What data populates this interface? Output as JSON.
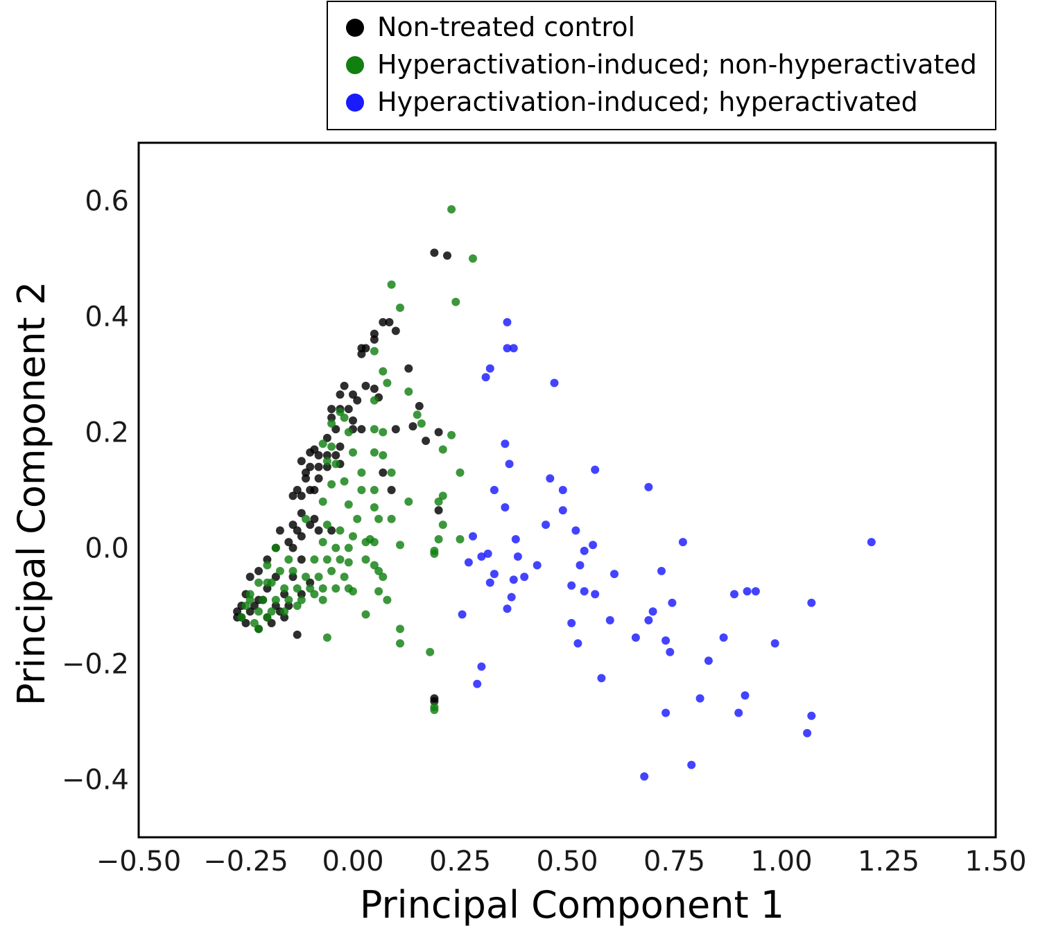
{
  "chart_data": {
    "type": "scatter",
    "xlabel": "Principal Component 1",
    "ylabel": "Principal Component 2",
    "xlim": [
      -0.5,
      1.5
    ],
    "ylim": [
      -0.5,
      0.7
    ],
    "xticks": [
      {
        "value": -0.5,
        "label": "−0.50"
      },
      {
        "value": -0.25,
        "label": "−0.25"
      },
      {
        "value": 0.0,
        "label": "0.00"
      },
      {
        "value": 0.25,
        "label": "0.25"
      },
      {
        "value": 0.5,
        "label": "0.50"
      },
      {
        "value": 0.75,
        "label": "0.75"
      },
      {
        "value": 1.0,
        "label": "1.00"
      },
      {
        "value": 1.25,
        "label": "1.25"
      },
      {
        "value": 1.5,
        "label": "1.50"
      }
    ],
    "yticks": [
      {
        "value": -0.4,
        "label": "−0.4"
      },
      {
        "value": -0.2,
        "label": "−0.2"
      },
      {
        "value": 0.0,
        "label": "0.0"
      },
      {
        "value": 0.2,
        "label": "0.2"
      },
      {
        "value": 0.4,
        "label": "0.4"
      },
      {
        "value": 0.6,
        "label": "0.6"
      }
    ],
    "grid": false,
    "legend_position": "top-right, above plot",
    "series": [
      {
        "name": "Non-treated control",
        "color": "#000000",
        "points": [
          [
            0.19,
            0.51
          ],
          [
            0.22,
            0.505
          ],
          [
            0.07,
            0.39
          ],
          [
            0.085,
            0.39
          ],
          [
            0.1,
            0.375
          ],
          [
            0.05,
            0.37
          ],
          [
            0.05,
            0.36
          ],
          [
            0.03,
            0.345
          ],
          [
            0.02,
            0.345
          ],
          [
            0.02,
            0.335
          ],
          [
            0.13,
            0.31
          ],
          [
            0.03,
            0.28
          ],
          [
            0.05,
            0.275
          ],
          [
            -0.02,
            0.28
          ],
          [
            -0.03,
            0.265
          ],
          [
            0.0,
            0.265
          ],
          [
            0.01,
            0.255
          ],
          [
            0.06,
            0.26
          ],
          [
            -0.03,
            0.24
          ],
          [
            -0.01,
            0.24
          ],
          [
            -0.05,
            0.24
          ],
          [
            -0.05,
            0.225
          ],
          [
            0.0,
            0.22
          ],
          [
            0.155,
            0.245
          ],
          [
            0.14,
            0.21
          ],
          [
            -0.04,
            0.205
          ],
          [
            0.0,
            0.205
          ],
          [
            0.02,
            0.205
          ],
          [
            0.1,
            0.205
          ],
          [
            0.2,
            0.2
          ],
          [
            0.17,
            0.185
          ],
          [
            -0.06,
            0.19
          ],
          [
            -0.03,
            0.175
          ],
          [
            -0.09,
            0.17
          ],
          [
            -0.1,
            0.165
          ],
          [
            -0.08,
            0.16
          ],
          [
            -0.06,
            0.16
          ],
          [
            -0.04,
            0.16
          ],
          [
            -0.12,
            0.15
          ],
          [
            -0.1,
            0.14
          ],
          [
            -0.08,
            0.14
          ],
          [
            -0.11,
            0.13
          ],
          [
            -0.06,
            0.14
          ],
          [
            -0.03,
            0.145
          ],
          [
            -0.11,
            0.12
          ],
          [
            -0.08,
            0.12
          ],
          [
            -0.13,
            0.1
          ],
          [
            -0.1,
            0.1
          ],
          [
            -0.14,
            0.09
          ],
          [
            -0.12,
            0.09
          ],
          [
            -0.09,
            0.1
          ],
          [
            0.07,
            0.13
          ],
          [
            0.09,
            0.1
          ],
          [
            0.2,
            0.065
          ],
          [
            -0.12,
            0.06
          ],
          [
            -0.09,
            0.05
          ],
          [
            -0.14,
            0.04
          ],
          [
            -0.1,
            0.04
          ],
          [
            -0.08,
            0.03
          ],
          [
            -0.13,
            0.03
          ],
          [
            -0.17,
            0.03
          ],
          [
            -0.15,
            0.01
          ],
          [
            -0.12,
            0.02
          ],
          [
            -0.05,
            0.03
          ],
          [
            -0.18,
            0.0
          ],
          [
            -0.14,
            0.0
          ],
          [
            -0.2,
            -0.02
          ],
          [
            -0.12,
            -0.02
          ],
          [
            -0.22,
            -0.04
          ],
          [
            -0.18,
            -0.05
          ],
          [
            -0.14,
            -0.05
          ],
          [
            -0.1,
            -0.06
          ],
          [
            -0.24,
            -0.05
          ],
          [
            -0.2,
            -0.07
          ],
          [
            -0.16,
            -0.08
          ],
          [
            -0.12,
            -0.08
          ],
          [
            -0.25,
            -0.08
          ],
          [
            -0.22,
            -0.09
          ],
          [
            -0.18,
            -0.1
          ],
          [
            -0.26,
            -0.1
          ],
          [
            -0.24,
            -0.11
          ],
          [
            -0.2,
            -0.12
          ],
          [
            -0.27,
            -0.12
          ],
          [
            -0.25,
            -0.13
          ],
          [
            -0.22,
            -0.14
          ],
          [
            -0.16,
            -0.12
          ],
          [
            -0.19,
            -0.13
          ],
          [
            -0.13,
            -0.15
          ],
          [
            0.19,
            -0.26
          ],
          [
            0.19,
            -0.265
          ],
          [
            -0.27,
            -0.11
          ],
          [
            -0.26,
            -0.12
          ],
          [
            -0.23,
            -0.1
          ],
          [
            -0.21,
            -0.09
          ],
          [
            -0.15,
            -0.1
          ],
          [
            -0.17,
            -0.11
          ]
        ]
      },
      {
        "name": "Hyperactivation-induced; non-hyperactivated",
        "color": "#118011",
        "points": [
          [
            0.23,
            0.585
          ],
          [
            0.28,
            0.5
          ],
          [
            0.09,
            0.455
          ],
          [
            0.24,
            0.425
          ],
          [
            0.11,
            0.415
          ],
          [
            0.05,
            0.34
          ],
          [
            0.07,
            0.305
          ],
          [
            0.08,
            0.285
          ],
          [
            0.13,
            0.27
          ],
          [
            0.05,
            0.255
          ],
          [
            -0.03,
            0.235
          ],
          [
            -0.02,
            0.225
          ],
          [
            0.15,
            0.23
          ],
          [
            0.16,
            0.215
          ],
          [
            -0.05,
            0.215
          ],
          [
            -0.01,
            0.2
          ],
          [
            0.05,
            0.205
          ],
          [
            0.07,
            0.2
          ],
          [
            0.23,
            0.195
          ],
          [
            -0.07,
            0.18
          ],
          [
            -0.05,
            0.175
          ],
          [
            0.0,
            0.165
          ],
          [
            0.05,
            0.165
          ],
          [
            0.07,
            0.16
          ],
          [
            0.21,
            0.17
          ],
          [
            -0.06,
            0.15
          ],
          [
            -0.04,
            0.145
          ],
          [
            0.02,
            0.13
          ],
          [
            0.09,
            0.13
          ],
          [
            0.25,
            0.13
          ],
          [
            -0.05,
            0.11
          ],
          [
            -0.02,
            0.115
          ],
          [
            0.02,
            0.1
          ],
          [
            0.05,
            0.1
          ],
          [
            0.13,
            0.08
          ],
          [
            0.2,
            0.08
          ],
          [
            0.21,
            0.09
          ],
          [
            -0.07,
            0.08
          ],
          [
            -0.01,
            0.075
          ],
          [
            0.05,
            0.07
          ],
          [
            0.01,
            0.05
          ],
          [
            0.06,
            0.05
          ],
          [
            0.09,
            0.05
          ],
          [
            0.21,
            0.04
          ],
          [
            -0.11,
            0.05
          ],
          [
            -0.06,
            0.04
          ],
          [
            -0.03,
            0.03
          ],
          [
            0.0,
            0.02
          ],
          [
            0.04,
            0.015
          ],
          [
            0.05,
            0.01
          ],
          [
            0.2,
            0.015
          ],
          [
            0.25,
            0.015
          ],
          [
            -0.07,
            0.01
          ],
          [
            -0.04,
            0.0
          ],
          [
            -0.01,
            0.0
          ],
          [
            0.03,
            0.01
          ],
          [
            0.11,
            0.005
          ],
          [
            0.19,
            -0.005
          ],
          [
            0.19,
            -0.01
          ],
          [
            -0.18,
            0.0
          ],
          [
            -0.15,
            -0.02
          ],
          [
            -0.09,
            -0.02
          ],
          [
            -0.06,
            -0.02
          ],
          [
            -0.03,
            -0.02
          ],
          [
            -0.01,
            -0.025
          ],
          [
            0.03,
            -0.02
          ],
          [
            0.05,
            -0.03
          ],
          [
            0.06,
            -0.04
          ],
          [
            -0.2,
            -0.03
          ],
          [
            -0.17,
            -0.04
          ],
          [
            -0.14,
            -0.04
          ],
          [
            -0.11,
            -0.05
          ],
          [
            -0.08,
            -0.05
          ],
          [
            -0.05,
            -0.04
          ],
          [
            -0.02,
            -0.05
          ],
          [
            0.07,
            -0.05
          ],
          [
            -0.22,
            -0.06
          ],
          [
            -0.19,
            -0.06
          ],
          [
            -0.16,
            -0.07
          ],
          [
            -0.13,
            -0.07
          ],
          [
            -0.1,
            -0.07
          ],
          [
            -0.07,
            -0.07
          ],
          [
            -0.04,
            -0.07
          ],
          [
            -0.01,
            -0.07
          ],
          [
            0.0,
            -0.075
          ],
          [
            0.06,
            -0.075
          ],
          [
            -0.24,
            -0.08
          ],
          [
            -0.21,
            -0.09
          ],
          [
            -0.18,
            -0.09
          ],
          [
            -0.15,
            -0.09
          ],
          [
            -0.12,
            -0.09
          ],
          [
            -0.09,
            -0.08
          ],
          [
            -0.07,
            -0.09
          ],
          [
            0.08,
            -0.09
          ],
          [
            -0.25,
            -0.1
          ],
          [
            -0.22,
            -0.11
          ],
          [
            -0.19,
            -0.11
          ],
          [
            -0.16,
            -0.11
          ],
          [
            -0.13,
            -0.1
          ],
          [
            -0.26,
            -0.12
          ],
          [
            -0.23,
            -0.13
          ],
          [
            -0.2,
            -0.12
          ],
          [
            0.03,
            -0.115
          ],
          [
            -0.22,
            -0.14
          ],
          [
            -0.06,
            -0.155
          ],
          [
            0.11,
            -0.14
          ],
          [
            0.11,
            -0.165
          ],
          [
            0.18,
            -0.18
          ],
          [
            0.19,
            -0.275
          ],
          [
            0.19,
            -0.28
          ],
          [
            -0.24,
            -0.09
          ],
          [
            -0.2,
            -0.06
          ]
        ]
      },
      {
        "name": "Hyperactivation-induced; hyperactivated",
        "color": "#1a1aff",
        "points": [
          [
            0.36,
            0.39
          ],
          [
            0.36,
            0.345
          ],
          [
            0.375,
            0.345
          ],
          [
            0.47,
            0.285
          ],
          [
            0.32,
            0.31
          ],
          [
            0.31,
            0.295
          ],
          [
            0.355,
            0.18
          ],
          [
            0.365,
            0.145
          ],
          [
            0.565,
            0.135
          ],
          [
            0.69,
            0.105
          ],
          [
            0.46,
            0.12
          ],
          [
            0.49,
            0.1
          ],
          [
            0.33,
            0.1
          ],
          [
            0.355,
            0.07
          ],
          [
            0.49,
            0.065
          ],
          [
            0.45,
            0.04
          ],
          [
            0.52,
            0.03
          ],
          [
            0.28,
            0.02
          ],
          [
            0.38,
            0.015
          ],
          [
            0.77,
            0.01
          ],
          [
            1.21,
            0.01
          ],
          [
            0.54,
            -0.005
          ],
          [
            0.56,
            0.005
          ],
          [
            0.3,
            -0.015
          ],
          [
            0.315,
            -0.01
          ],
          [
            0.385,
            -0.015
          ],
          [
            0.27,
            -0.025
          ],
          [
            0.43,
            -0.03
          ],
          [
            0.53,
            -0.03
          ],
          [
            0.72,
            -0.04
          ],
          [
            0.33,
            -0.045
          ],
          [
            0.375,
            -0.055
          ],
          [
            0.4,
            -0.05
          ],
          [
            0.61,
            -0.045
          ],
          [
            0.32,
            -0.06
          ],
          [
            0.51,
            -0.065
          ],
          [
            0.54,
            -0.075
          ],
          [
            0.565,
            -0.08
          ],
          [
            0.37,
            -0.085
          ],
          [
            0.89,
            -0.08
          ],
          [
            0.92,
            -0.075
          ],
          [
            0.94,
            -0.075
          ],
          [
            1.07,
            -0.095
          ],
          [
            0.745,
            -0.095
          ],
          [
            0.36,
            -0.105
          ],
          [
            0.7,
            -0.11
          ],
          [
            0.69,
            -0.125
          ],
          [
            0.255,
            -0.115
          ],
          [
            0.51,
            -0.13
          ],
          [
            0.6,
            -0.125
          ],
          [
            0.66,
            -0.155
          ],
          [
            0.73,
            -0.16
          ],
          [
            0.865,
            -0.155
          ],
          [
            0.525,
            -0.165
          ],
          [
            0.74,
            -0.18
          ],
          [
            0.985,
            -0.165
          ],
          [
            0.83,
            -0.195
          ],
          [
            0.3,
            -0.205
          ],
          [
            0.58,
            -0.225
          ],
          [
            0.29,
            -0.235
          ],
          [
            0.81,
            -0.26
          ],
          [
            0.915,
            -0.255
          ],
          [
            0.73,
            -0.285
          ],
          [
            0.9,
            -0.285
          ],
          [
            1.07,
            -0.29
          ],
          [
            1.06,
            -0.32
          ],
          [
            0.79,
            -0.375
          ],
          [
            0.68,
            -0.395
          ]
        ]
      }
    ]
  }
}
